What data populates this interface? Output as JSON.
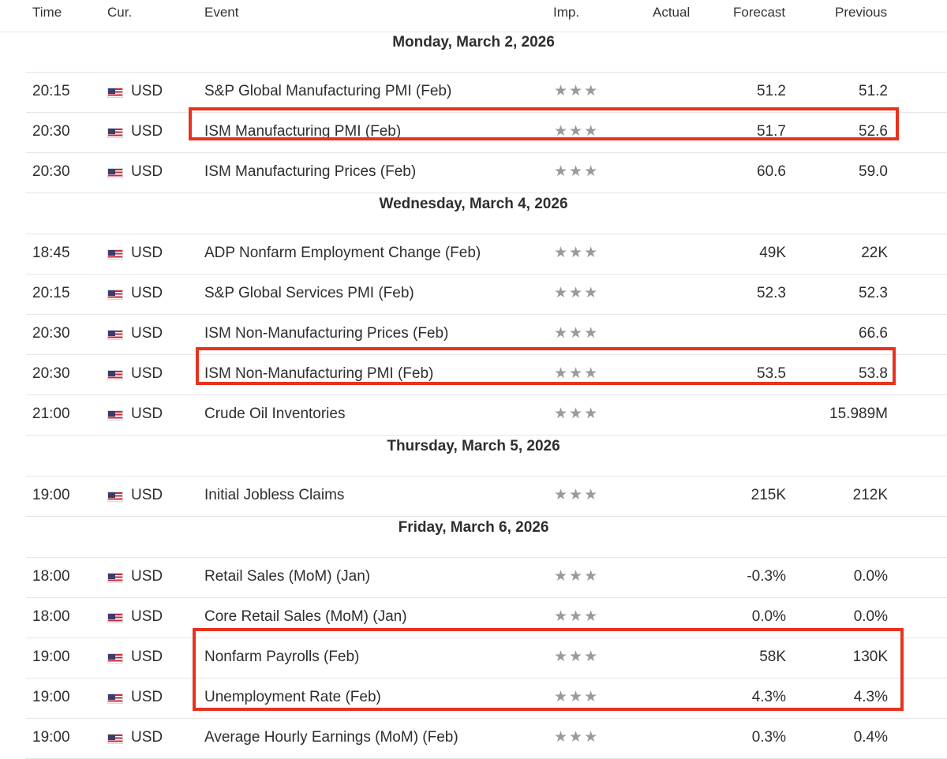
{
  "header": {
    "time": "Time",
    "currency": "Cur.",
    "event": "Event",
    "importance": "Imp.",
    "actual": "Actual",
    "forecast": "Forecast",
    "previous": "Previous"
  },
  "importance_icon": "star-icon",
  "colors": {
    "highlight": "#e8321e",
    "flag_red": "#c62a3c",
    "flag_blue": "#3c3b6e",
    "star": "#9a9a9a"
  },
  "groups": [
    {
      "date": "Monday, March 2, 2026",
      "rows": [
        {
          "time": "20:15",
          "currency": "USD",
          "event": "S&P Global Manufacturing PMI (Feb)",
          "actual": "",
          "forecast": "51.2",
          "previous": "51.2",
          "stars": 3
        },
        {
          "time": "20:30",
          "currency": "USD",
          "event": "ISM Manufacturing PMI (Feb)",
          "actual": "",
          "forecast": "51.7",
          "previous": "52.6",
          "stars": 3
        },
        {
          "time": "20:30",
          "currency": "USD",
          "event": "ISM Manufacturing Prices (Feb)",
          "actual": "",
          "forecast": "60.6",
          "previous": "59.0",
          "stars": 3
        }
      ]
    },
    {
      "date": "Wednesday, March 4, 2026",
      "rows": [
        {
          "time": "18:45",
          "currency": "USD",
          "event": "ADP Nonfarm Employment Change (Feb)",
          "actual": "",
          "forecast": "49K",
          "previous": "22K",
          "stars": 3
        },
        {
          "time": "20:15",
          "currency": "USD",
          "event": "S&P Global Services PMI (Feb)",
          "actual": "",
          "forecast": "52.3",
          "previous": "52.3",
          "stars": 3
        },
        {
          "time": "20:30",
          "currency": "USD",
          "event": "ISM Non-Manufacturing Prices (Feb)",
          "actual": "",
          "forecast": "",
          "previous": "66.6",
          "stars": 3
        },
        {
          "time": "20:30",
          "currency": "USD",
          "event": "ISM Non-Manufacturing PMI (Feb)",
          "actual": "",
          "forecast": "53.5",
          "previous": "53.8",
          "stars": 3
        },
        {
          "time": "21:00",
          "currency": "USD",
          "event": "Crude Oil Inventories",
          "actual": "",
          "forecast": "",
          "previous": "15.989M",
          "stars": 3
        }
      ]
    },
    {
      "date": "Thursday, March 5, 2026",
      "rows": [
        {
          "time": "19:00",
          "currency": "USD",
          "event": "Initial Jobless Claims",
          "actual": "",
          "forecast": "215K",
          "previous": "212K",
          "stars": 3
        }
      ]
    },
    {
      "date": "Friday, March 6, 2026",
      "rows": [
        {
          "time": "18:00",
          "currency": "USD",
          "event": "Retail Sales (MoM) (Jan)",
          "actual": "",
          "forecast": "-0.3%",
          "previous": "0.0%",
          "stars": 3
        },
        {
          "time": "18:00",
          "currency": "USD",
          "event": "Core Retail Sales (MoM) (Jan)",
          "actual": "",
          "forecast": "0.0%",
          "previous": "0.0%",
          "stars": 3
        },
        {
          "time": "19:00",
          "currency": "USD",
          "event": "Nonfarm Payrolls (Feb)",
          "actual": "",
          "forecast": "58K",
          "previous": "130K",
          "stars": 3
        },
        {
          "time": "19:00",
          "currency": "USD",
          "event": "Unemployment Rate (Feb)",
          "actual": "",
          "forecast": "4.3%",
          "previous": "4.3%",
          "stars": 3
        },
        {
          "time": "19:00",
          "currency": "USD",
          "event": "Average Hourly Earnings (MoM) (Feb)",
          "actual": "",
          "forecast": "0.3%",
          "previous": "0.4%",
          "stars": 3
        }
      ]
    }
  ]
}
